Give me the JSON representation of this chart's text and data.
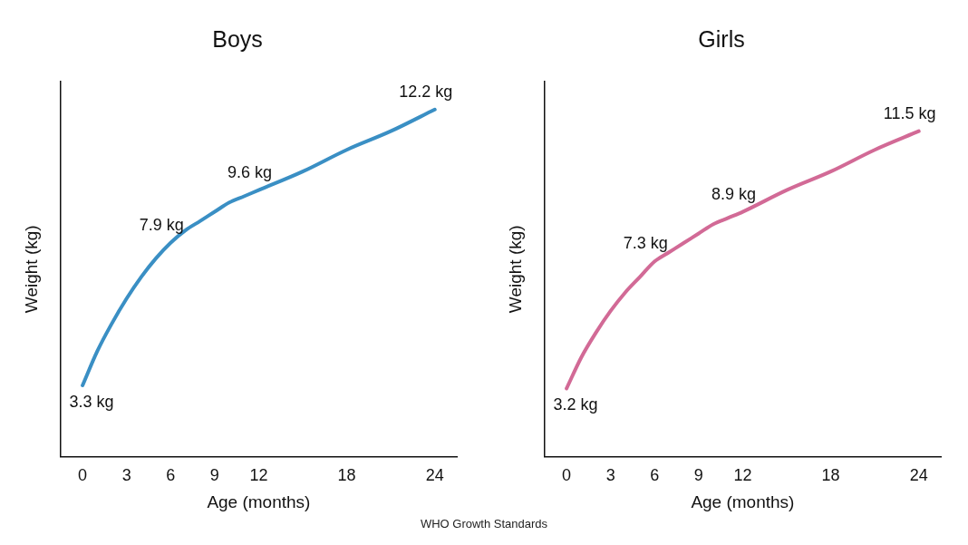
{
  "chart_data": [
    {
      "type": "line",
      "title": "Boys",
      "xlabel": "Age (months)",
      "ylabel": "Weight (kg)",
      "x": [
        0,
        1,
        2,
        3,
        4,
        5,
        6,
        7,
        8,
        9,
        10,
        11,
        12,
        15,
        18,
        21,
        24
      ],
      "series": [
        {
          "color": "#3a8fc4",
          "values": [
            3.3,
            4.4,
            5.3,
            6.1,
            6.8,
            7.4,
            7.9,
            8.3,
            8.6,
            8.9,
            9.2,
            9.4,
            9.6,
            10.2,
            10.9,
            11.5,
            12.2
          ],
          "value_labels": [
            "3.3 kg",
            null,
            null,
            null,
            null,
            null,
            "7.9 kg",
            null,
            null,
            null,
            null,
            null,
            "9.6 kg",
            null,
            null,
            null,
            "12.2 kg"
          ]
        }
      ],
      "xlim": [
        -1.5,
        25.5
      ],
      "xticks": [
        0,
        3,
        6,
        9,
        12,
        18,
        24
      ],
      "ylim": [
        1,
        13.1
      ],
      "tick_labels": "x",
      "grid": false,
      "legend": false,
      "marker": "none",
      "line_style": "solid",
      "annotations": [
        "WHO Growth Standards"
      ]
    },
    {
      "type": "line",
      "title": "Girls",
      "xlabel": "Age (months)",
      "ylabel": "Weight (kg)",
      "x": [
        0,
        1,
        2,
        3,
        4,
        5,
        6,
        7,
        8,
        9,
        10,
        11,
        12,
        15,
        18,
        21,
        24
      ],
      "series": [
        {
          "color": "#d26a96",
          "values": [
            3.2,
            4.2,
            5.0,
            5.7,
            6.3,
            6.8,
            7.3,
            7.6,
            7.9,
            8.2,
            8.5,
            8.7,
            8.9,
            9.6,
            10.2,
            10.9,
            11.5
          ],
          "value_labels": [
            "3.2 kg",
            null,
            null,
            null,
            null,
            null,
            "7.3 kg",
            null,
            null,
            null,
            null,
            null,
            "8.9 kg",
            null,
            null,
            null,
            "11.5 kg"
          ]
        }
      ],
      "xlim": [
        -1.5,
        25.5
      ],
      "xticks": [
        0,
        3,
        6,
        9,
        12,
        18,
        24
      ],
      "ylim": [
        1,
        13.1
      ],
      "tick_labels": "x",
      "grid": false,
      "legend": false,
      "marker": "none",
      "line_style": "solid"
    }
  ]
}
